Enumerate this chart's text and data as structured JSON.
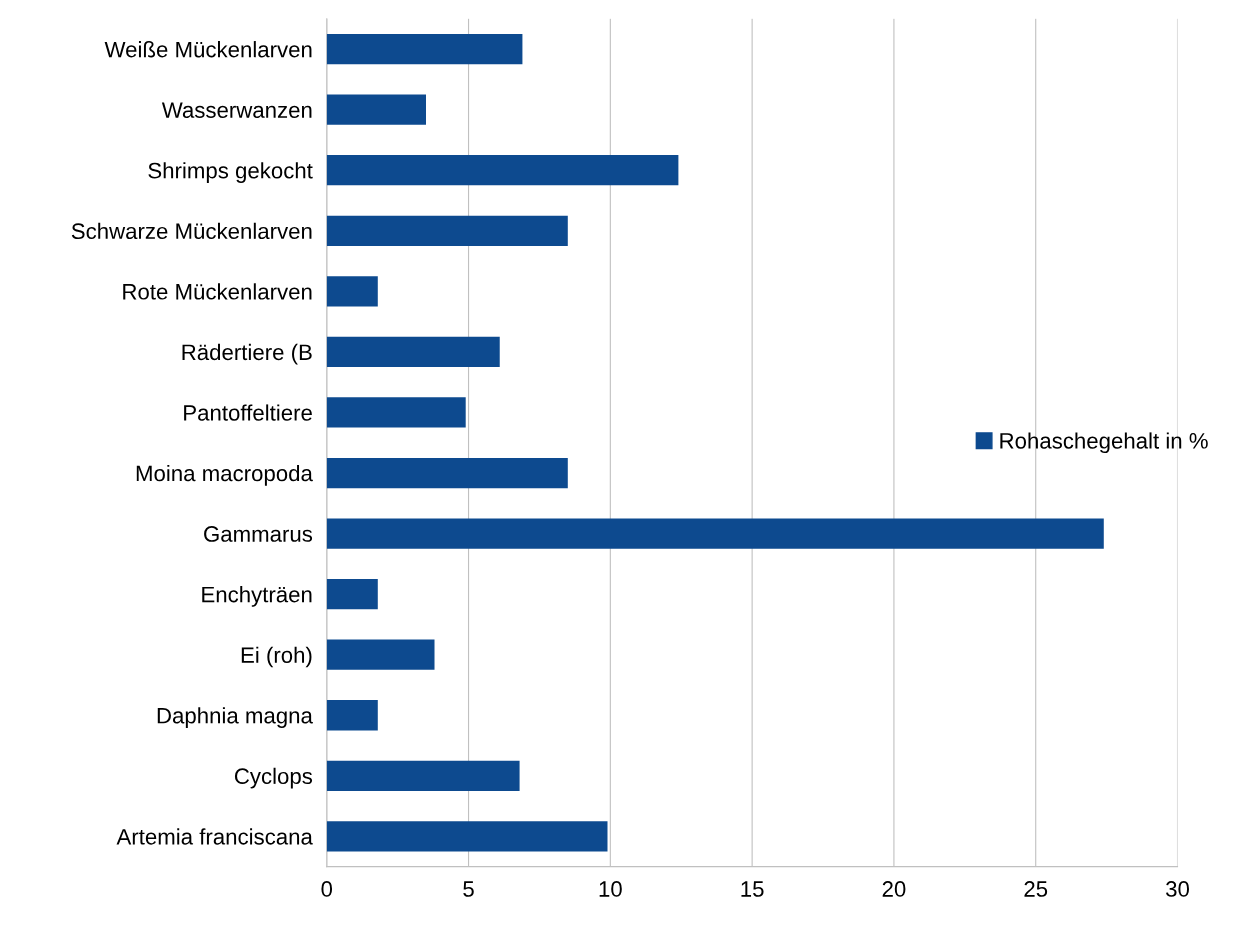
{
  "chart_data": {
    "type": "bar",
    "orientation": "horizontal",
    "categories": [
      "Weiße Mückenlarven",
      "Wasserwanzen",
      "Shrimps gekocht",
      "Schwarze Mückenlarven",
      "Rote Mückenlarven",
      "Rädertiere (B",
      "Pantoffeltiere",
      "Moina macropoda",
      "Gammarus",
      "Enchyträen",
      "Ei (roh)",
      "Daphnia magna",
      "Cyclops",
      "Artemia franciscana"
    ],
    "series": [
      {
        "name": "Rohaschegehalt in %",
        "color": "#0d4a8f",
        "values": [
          6.9,
          3.5,
          12.4,
          8.5,
          1.8,
          6.1,
          4.9,
          8.5,
          27.4,
          1.8,
          3.8,
          1.8,
          6.8,
          9.9
        ]
      }
    ],
    "xlim": [
      0,
      30
    ],
    "xticks": [
      0,
      5,
      10,
      15,
      20,
      25,
      30
    ],
    "grid": "x",
    "legend": "right"
  }
}
